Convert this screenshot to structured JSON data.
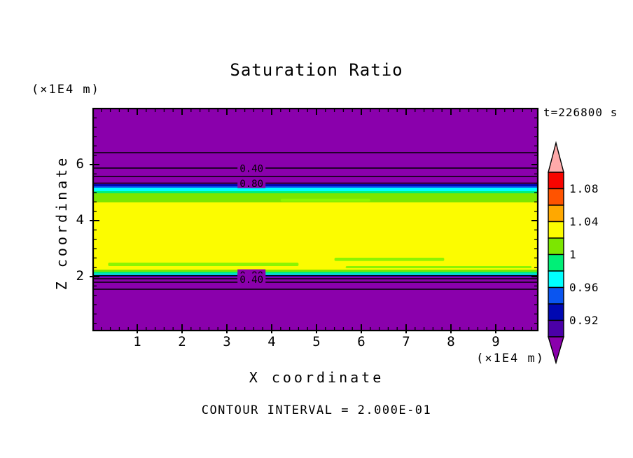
{
  "title": "Saturation Ratio",
  "time_label": "t=226800 s",
  "footer": "CONTOUR INTERVAL = 2.000E-01",
  "x_axis": {
    "label": "X coordinate",
    "unit": "(×1E4 m)",
    "tick_labels": [
      "1",
      "2",
      "3",
      "4",
      "5",
      "6",
      "7",
      "8",
      "9"
    ]
  },
  "y_axis": {
    "label": "Z coordinate",
    "unit": "(×1E4 m)",
    "tick_labels": [
      "6",
      "4",
      "2"
    ]
  },
  "colorbar": {
    "tick_labels": [
      "1.08",
      "1.04",
      "1",
      "0.96",
      "0.92"
    ],
    "cell_colors_top_to_bottom": [
      "#f80400",
      "#ff5300",
      "#ffa800",
      "#fcfc00",
      "#7ce600",
      "#00ef77",
      "#00ffff",
      "#0a55f0",
      "#0008b2",
      "#4b00a8"
    ],
    "cell_values_top_to_bottom": [
      [
        1.08,
        1.1
      ],
      [
        1.06,
        1.08
      ],
      [
        1.04,
        1.06
      ],
      [
        1.02,
        1.04
      ],
      [
        1.0,
        1.02
      ],
      [
        0.98,
        1.0
      ],
      [
        0.96,
        0.98
      ],
      [
        0.94,
        0.96
      ],
      [
        0.92,
        0.94
      ],
      [
        0.9,
        0.92
      ]
    ],
    "over_color": "#ffaaaa",
    "under_color": "#8a00ac"
  },
  "chart_data": {
    "type": "heatmap",
    "title": "Saturation Ratio",
    "xlabel": "X coordinate (×1E4 m)",
    "ylabel": "Z coordinate (×1E4 m)",
    "time_annotation": "t=226800 s",
    "contour_interval": 0.2,
    "x_range": [
      0,
      9.95
    ],
    "z_range": [
      0.05,
      8.0
    ],
    "x_ticks": [
      1,
      2,
      3,
      4,
      5,
      6,
      7,
      8,
      9
    ],
    "z_ticks": [
      2,
      4,
      6
    ],
    "color_levels": [
      0.9,
      0.92,
      0.94,
      0.96,
      0.98,
      1.0,
      1.02,
      1.04,
      1.06,
      1.08,
      1.1
    ],
    "bands": [
      {
        "z_from": 5.3,
        "z_to": 8.0,
        "color": "#8a00ac",
        "value": "<0.90"
      },
      {
        "z_from": 5.225,
        "z_to": 5.3,
        "color": "#0008b2",
        "value": "0.92-0.94"
      },
      {
        "z_from": 5.175,
        "z_to": 5.225,
        "color": "#0a55f0",
        "value": "0.94-0.96"
      },
      {
        "z_from": 5.05,
        "z_to": 5.175,
        "color": "#00ffff",
        "value": "0.96-0.98"
      },
      {
        "z_from": 4.975,
        "z_to": 5.05,
        "color": "#00ef77",
        "value": "0.98-1.00"
      },
      {
        "z_from": 4.65,
        "z_to": 4.975,
        "color": "#7ce600",
        "value": "1.00-1.02"
      },
      {
        "z_from": 2.25,
        "z_to": 4.65,
        "color": "#fcfc00",
        "value": "1.02-1.04"
      },
      {
        "z_from": 2.175,
        "z_to": 2.25,
        "color": "#7ce600",
        "value": "1.00-1.02"
      },
      {
        "z_from": 2.11,
        "z_to": 2.175,
        "color": "#00ef77",
        "value": "0.98-1.00"
      },
      {
        "z_from": 2.06,
        "z_to": 2.11,
        "color": "#00ffff",
        "value": "0.96-0.98"
      },
      {
        "z_from": 2.02,
        "z_to": 2.06,
        "color": "#0a55f0",
        "value": "0.94-0.96"
      },
      {
        "z_from": 2.0,
        "z_to": 2.02,
        "color": "#0008b2",
        "value": "0.92-0.94"
      },
      {
        "z_from": 0.05,
        "z_to": 2.0,
        "color": "#8a00ac",
        "value": "<0.90"
      }
    ],
    "streaks": [
      {
        "x_from": 0.35,
        "x_to": 4.6,
        "z_from": 2.375,
        "z_to": 2.5,
        "color": "#8df500"
      },
      {
        "x_from": 5.4,
        "x_to": 7.85,
        "z_from": 2.56,
        "z_to": 2.675,
        "color": "#8df500"
      },
      {
        "x_from": 5.65,
        "x_to": 9.8,
        "z_from": 2.3,
        "z_to": 2.375,
        "color": "#8df500"
      },
      {
        "x_from": 4.2,
        "x_to": 6.2,
        "z_from": 4.68,
        "z_to": 4.78,
        "color": "#8df500"
      }
    ],
    "line_contours": [
      {
        "value": 0.2,
        "z": 6.425,
        "labeled": false
      },
      {
        "value": 0.4,
        "z": 5.875,
        "labeled": true
      },
      {
        "value": 0.6,
        "z": 5.575,
        "labeled": false
      },
      {
        "value": 0.8,
        "z": 5.3375,
        "labeled": true
      },
      {
        "value": 0.8,
        "z": 2.04,
        "labeled": true
      },
      {
        "value": 0.6,
        "z": 1.925,
        "labeled": false
      },
      {
        "value": 0.4,
        "z": 1.8,
        "labeled": true
      },
      {
        "value": 0.2,
        "z": 1.55,
        "labeled": false
      }
    ],
    "contour_labels": [
      {
        "text": "0.40",
        "x": 3.55,
        "z": 5.875
      },
      {
        "text": "0.80",
        "x": 3.55,
        "z": 5.3375
      },
      {
        "text": "0.80",
        "x": 3.55,
        "z": 2.06
      },
      {
        "text": "0.40",
        "x": 3.55,
        "z": 1.9125
      }
    ],
    "legend_position": "right",
    "grid": false
  },
  "layout_colors": {
    "background": "#ffffff",
    "ink": "#000000"
  }
}
